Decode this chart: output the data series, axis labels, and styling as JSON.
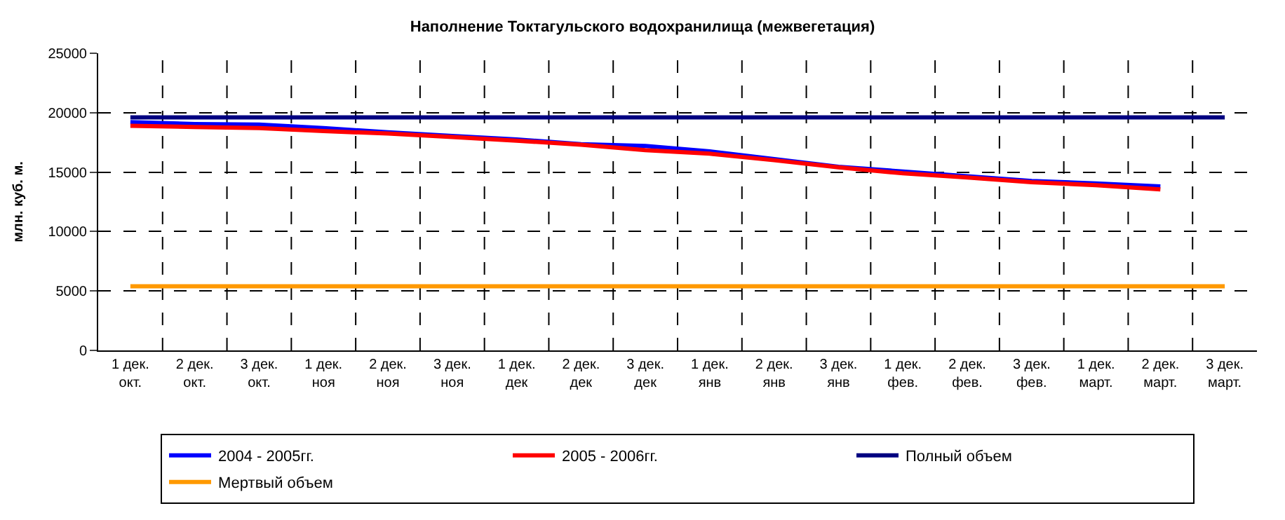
{
  "chart_data": {
    "type": "line",
    "title": "Наполнение Токтагульского водохранилища (межвегетация)",
    "ylabel": "млн. куб. м.",
    "categories": [
      "1 дек. окт.",
      "2 дек. окт.",
      "3 дек. окт.",
      "1 дек. ноя",
      "2 дек. ноя",
      "3 дек. ноя",
      "1 дек. дек",
      "2 дек. дек",
      "3 дек. дек",
      "1 дек. янв",
      "2 дек. янв",
      "3 дек. янв",
      "1 дек. фев.",
      "2 дек. фев.",
      "3 дек. фев.",
      "1 дек. март.",
      "2 дек. март.",
      "3 дек. март."
    ],
    "series": [
      {
        "name": "2004 - 2005гг.",
        "color": "#0000ff",
        "values": [
          19200,
          19050,
          19000,
          18700,
          18350,
          18050,
          17750,
          17350,
          17200,
          16750,
          16100,
          15450,
          15050,
          14650,
          14250,
          14050,
          13800,
          null
        ]
      },
      {
        "name": "2005 - 2006гг.",
        "color": "#ff0000",
        "values": [
          18900,
          18800,
          18700,
          18450,
          18250,
          17950,
          17650,
          17300,
          16850,
          16550,
          16000,
          15400,
          14900,
          14550,
          14150,
          13900,
          13550,
          null
        ]
      },
      {
        "name": "Полный объем",
        "color": "#000080",
        "values": [
          19600,
          19600,
          19600,
          19600,
          19600,
          19600,
          19600,
          19600,
          19600,
          19600,
          19600,
          19600,
          19600,
          19600,
          19600,
          19600,
          19600,
          19600
        ]
      },
      {
        "name": "Мертвый объем",
        "color": "#ff9900",
        "values": [
          5400,
          5400,
          5400,
          5400,
          5400,
          5400,
          5400,
          5400,
          5400,
          5400,
          5400,
          5400,
          5400,
          5400,
          5400,
          5400,
          5400,
          5400
        ]
      }
    ],
    "ylim": [
      0,
      25000
    ],
    "yticks": [
      0,
      5000,
      10000,
      15000,
      20000,
      25000
    ],
    "grid": true,
    "legend": "bottom",
    "marker": "none",
    "line_style": "solid"
  }
}
